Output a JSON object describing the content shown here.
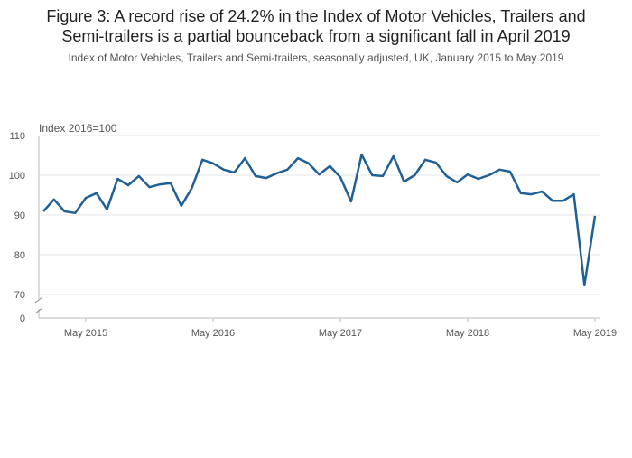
{
  "chart_data": {
    "type": "line",
    "title": "Figure 3: A record rise of 24.2% in the Index of Motor Vehicles, Trailers and Semi-trailers is a partial bounceback from a significant fall in April 2019",
    "title_lines": [
      "Figure 3: A record rise of 24.2% in the Index of Motor Vehicles, Trailers and",
      "Semi-trailers is a partial bounceback from a significant fall in April 2019"
    ],
    "subtitle": "Index of Motor Vehicles, Trailers and Semi-trailers, seasonally adjusted, UK, January 2015 to May 2019",
    "y_label": "Index 2016=100",
    "x": [
      "2015-01",
      "2015-02",
      "2015-03",
      "2015-04",
      "2015-05",
      "2015-06",
      "2015-07",
      "2015-08",
      "2015-09",
      "2015-10",
      "2015-11",
      "2015-12",
      "2016-01",
      "2016-02",
      "2016-03",
      "2016-04",
      "2016-05",
      "2016-06",
      "2016-07",
      "2016-08",
      "2016-09",
      "2016-10",
      "2016-11",
      "2016-12",
      "2017-01",
      "2017-02",
      "2017-03",
      "2017-04",
      "2017-05",
      "2017-06",
      "2017-07",
      "2017-08",
      "2017-09",
      "2017-10",
      "2017-11",
      "2017-12",
      "2018-01",
      "2018-02",
      "2018-03",
      "2018-04",
      "2018-05",
      "2018-06",
      "2018-07",
      "2018-08",
      "2018-09",
      "2018-10",
      "2018-11",
      "2018-12",
      "2019-01",
      "2019-02",
      "2019-03",
      "2019-04",
      "2019-05"
    ],
    "series": [
      {
        "name": "Index of Motor Vehicles, Trailers and Semi-trailers",
        "color": "#206095",
        "values": [
          90.9,
          93.9,
          90.9,
          90.5,
          94.3,
          95.5,
          91.4,
          99.1,
          97.5,
          99.8,
          97.0,
          97.7,
          98.0,
          92.3,
          96.8,
          103.9,
          103.0,
          101.4,
          100.7,
          104.3,
          99.8,
          99.3,
          100.5,
          101.4,
          104.3,
          103.0,
          100.2,
          102.3,
          99.5,
          93.4,
          105.2,
          100.0,
          99.8,
          104.8,
          98.4,
          100.0,
          103.9,
          103.2,
          99.8,
          98.2,
          100.2,
          99.1,
          100.0,
          101.4,
          100.9,
          95.5,
          95.2,
          95.9,
          93.6,
          93.6,
          95.2,
          72.3,
          89.8
        ]
      }
    ],
    "xticks": [
      {
        "value": "2015-05",
        "label": "May 2015"
      },
      {
        "value": "2016-05",
        "label": "May 2016"
      },
      {
        "value": "2017-05",
        "label": "May 2017"
      },
      {
        "value": "2018-05",
        "label": "May 2018"
      },
      {
        "value": "2019-05",
        "label": "May 2019"
      }
    ],
    "xlim": [
      "2015-01",
      "2019-05"
    ],
    "ylim": [
      70,
      110
    ],
    "yticks": [
      0,
      70,
      80,
      90,
      100,
      110
    ],
    "axis_break": true,
    "grid": true
  }
}
